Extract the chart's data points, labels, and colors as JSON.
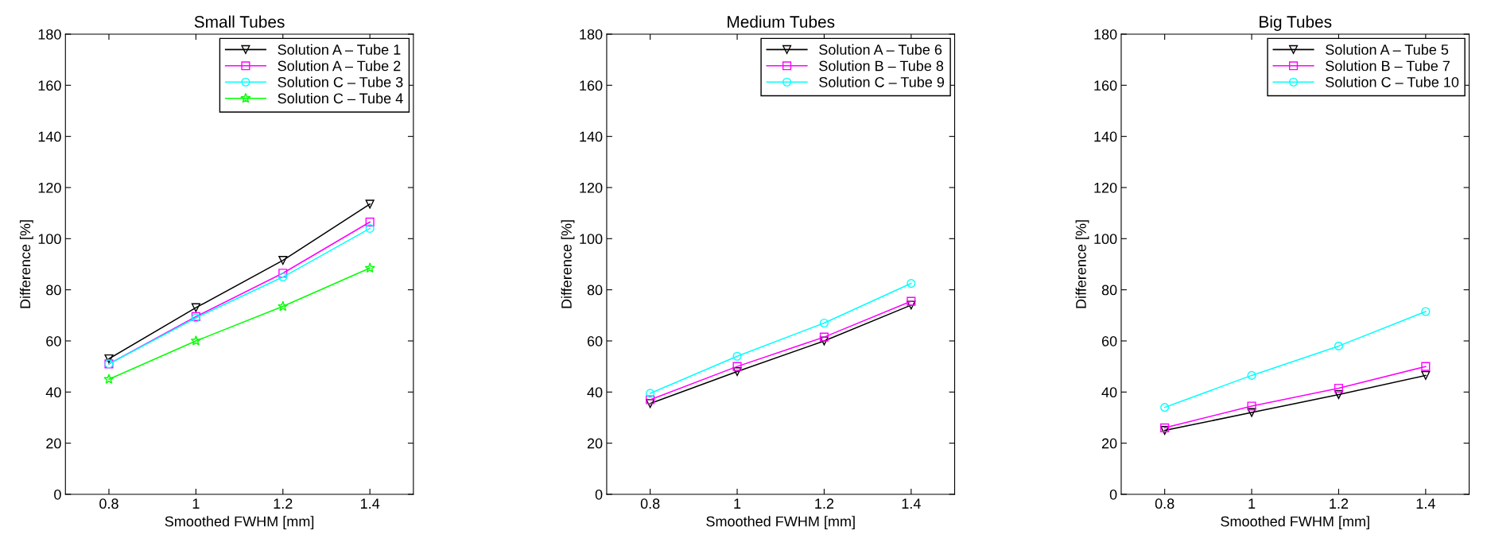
{
  "chart_data": [
    {
      "type": "line",
      "title": "Small Tubes",
      "xlabel": "Smoothed FWHM [mm]",
      "ylabel": "Difference [%]",
      "x": [
        0.8,
        1.0,
        1.2,
        1.4
      ],
      "xlim": [
        0.7,
        1.5
      ],
      "xticks": [
        0.8,
        1,
        1.2,
        1.4
      ],
      "ylim": [
        0,
        180
      ],
      "yticks": [
        0,
        20,
        40,
        60,
        80,
        100,
        120,
        140,
        160,
        180
      ],
      "grid": false,
      "legend": "top right",
      "line_style": "solid",
      "series": [
        {
          "name": "Solution A – Tube 1",
          "color": "#000000",
          "marker": "triangle",
          "values": [
            53,
            73,
            91.5,
            113.5
          ]
        },
        {
          "name": "Solution A – Tube 2",
          "color": "#ff00ff",
          "marker": "square",
          "values": [
            51,
            69.5,
            86.5,
            106.5
          ]
        },
        {
          "name": "Solution C – Tube 3",
          "color": "#00ffff",
          "marker": "circle",
          "values": [
            51,
            69,
            85,
            104
          ]
        },
        {
          "name": "Solution C – Tube 4",
          "color": "#00ff00",
          "marker": "star",
          "values": [
            45,
            60,
            73.5,
            88.5
          ]
        }
      ]
    },
    {
      "type": "line",
      "title": "Medium Tubes",
      "xlabel": "Smoothed FWHM [mm]",
      "ylabel": "Difference [%]",
      "x": [
        0.8,
        1.0,
        1.2,
        1.4
      ],
      "xlim": [
        0.7,
        1.5
      ],
      "xticks": [
        0.8,
        1,
        1.2,
        1.4
      ],
      "ylim": [
        0,
        180
      ],
      "yticks": [
        0,
        20,
        40,
        60,
        80,
        100,
        120,
        140,
        160,
        180
      ],
      "grid": false,
      "legend": "top right",
      "line_style": "solid",
      "series": [
        {
          "name": "Solution A – Tube 6",
          "color": "#000000",
          "marker": "triangle",
          "values": [
            35.5,
            48,
            60,
            74
          ]
        },
        {
          "name": "Solution B – Tube 8",
          "color": "#ff00ff",
          "marker": "square",
          "values": [
            37,
            50,
            61.5,
            75.5
          ]
        },
        {
          "name": "Solution C – Tube 9",
          "color": "#00ffff",
          "marker": "circle",
          "values": [
            39.5,
            54,
            67,
            82.5
          ]
        }
      ]
    },
    {
      "type": "line",
      "title": "Big Tubes",
      "xlabel": "Smoothed FWHM [mm]",
      "ylabel": "Difference [%]",
      "x": [
        0.8,
        1.0,
        1.2,
        1.4
      ],
      "xlim": [
        0.7,
        1.5
      ],
      "xticks": [
        0.8,
        1,
        1.2,
        1.4
      ],
      "ylim": [
        0,
        180
      ],
      "yticks": [
        0,
        20,
        40,
        60,
        80,
        100,
        120,
        140,
        160,
        180
      ],
      "grid": false,
      "legend": "top right",
      "line_style": "solid",
      "series": [
        {
          "name": "Solution A – Tube 5",
          "color": "#000000",
          "marker": "triangle",
          "values": [
            25,
            32,
            39,
            46.5
          ]
        },
        {
          "name": "Solution B – Tube 7",
          "color": "#ff00ff",
          "marker": "square",
          "values": [
            26,
            34.5,
            41.5,
            50
          ]
        },
        {
          "name": "Solution C – Tube 10",
          "color": "#00ffff",
          "marker": "circle",
          "values": [
            34,
            46.5,
            58,
            71.5
          ]
        }
      ]
    }
  ]
}
